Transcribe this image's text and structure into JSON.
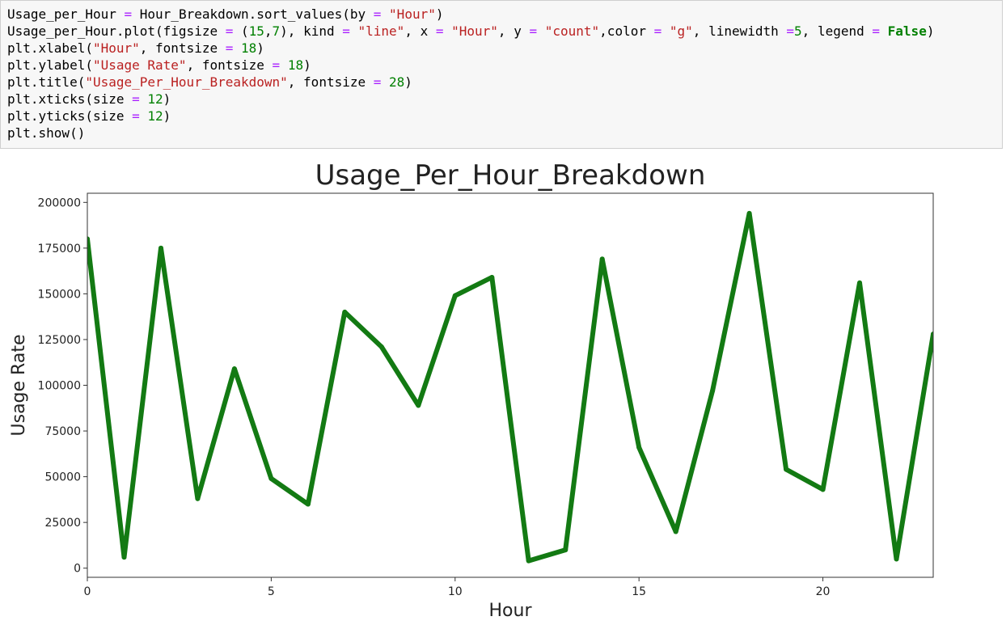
{
  "code_cell": {
    "lines": [
      "Usage_per_Hour = Hour_Breakdown.sort_values(by = \"Hour\")",
      "Usage_per_Hour.plot(figsize = (15,7), kind = \"line\", x = \"Hour\", y = \"count\",color = \"g\", linewidth =5, legend = False)",
      "plt.xlabel(\"Hour\", fontsize = 18)",
      "plt.ylabel(\"Usage Rate\", fontsize = 18)",
      "plt.title(\"Usage_Per_Hour_Breakdown\", fontsize = 28)",
      "plt.xticks(size = 12)",
      "plt.yticks(size = 12)",
      "plt.show()"
    ]
  },
  "chart_data": {
    "type": "line",
    "title": "Usage_Per_Hour_Breakdown",
    "xlabel": "Hour",
    "ylabel": "Usage Rate",
    "color": "#137a13",
    "xlim": [
      0,
      23
    ],
    "ylim": [
      -5000,
      205000
    ],
    "xticks": [
      0,
      5,
      10,
      15,
      20
    ],
    "xtick_labels": [
      "0",
      "5",
      "10",
      "15",
      "20"
    ],
    "yticks": [
      0,
      25000,
      50000,
      75000,
      100000,
      125000,
      150000,
      175000,
      200000
    ],
    "ytick_labels": [
      "0",
      "25000",
      "50000",
      "75000",
      "100000",
      "125000",
      "150000",
      "175000",
      "200000"
    ],
    "legend": false,
    "grid": false,
    "x": [
      0,
      1,
      2,
      3,
      4,
      5,
      6,
      7,
      8,
      9,
      10,
      11,
      12,
      13,
      14,
      15,
      16,
      17,
      18,
      19,
      20,
      21,
      22,
      23
    ],
    "series": [
      {
        "values": [
          180000,
          6000,
          175000,
          38000,
          109000,
          49000,
          35000,
          140000,
          121000,
          89000,
          149000,
          159000,
          4000,
          10000,
          169000,
          66000,
          20000,
          97000,
          194000,
          54000,
          43000,
          156000,
          5000,
          128000
        ]
      }
    ]
  }
}
